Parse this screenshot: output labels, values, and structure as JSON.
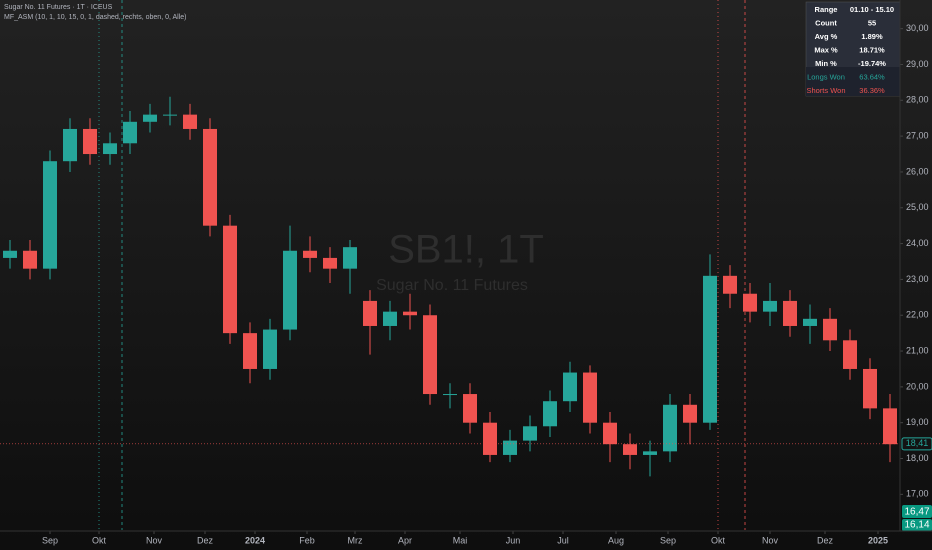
{
  "chart_data": {
    "type": "candlestick",
    "title": "Sugar No. 11 Futures · 1T · ICEUS",
    "indicator": "MF_ASM (10, 1, 10, 15, 0, 1, dashed, rechts, oben, 0, Alle)",
    "watermark": "SB1!, 1T",
    "watermark_subtitle": "Sugar No. 11 Futures",
    "up_color": "#26a69a",
    "down_color": "#ef5350",
    "x": [
      1,
      3,
      5,
      7,
      9,
      11,
      13,
      15,
      17,
      19,
      21,
      23,
      25,
      27,
      29,
      31,
      33,
      35,
      37,
      39,
      41,
      43,
      45,
      47,
      49,
      51,
      53,
      55,
      57,
      59,
      61,
      63,
      65,
      67,
      69,
      71,
      73,
      75,
      77,
      79,
      81,
      83,
      85,
      87,
      89
    ],
    "open": [
      23.6,
      23.8,
      23.3,
      26.3,
      27.2,
      26.5,
      26.8,
      27.4,
      27.6,
      27.6,
      27.2,
      24.5,
      21.5,
      20.5,
      21.6,
      23.8,
      23.6,
      23.3,
      22.4,
      21.7,
      22.1,
      22.0,
      19.8,
      19.8,
      19.0,
      18.1,
      18.5,
      18.9,
      19.6,
      20.4,
      19.0,
      18.4,
      18.1,
      18.2,
      19.5,
      19.0,
      23.1,
      22.6,
      22.1,
      22.4,
      21.7,
      21.9,
      21.3,
      20.5,
      19.4
    ],
    "high": [
      24.1,
      24.1,
      26.6,
      27.5,
      27.5,
      27.1,
      27.7,
      27.9,
      28.1,
      27.9,
      27.5,
      24.8,
      21.8,
      21.9,
      24.5,
      24.2,
      23.9,
      24.1,
      22.7,
      22.4,
      22.6,
      22.3,
      20.1,
      20.1,
      19.3,
      18.8,
      19.2,
      19.9,
      20.7,
      20.6,
      19.3,
      18.7,
      18.5,
      19.8,
      19.8,
      23.7,
      23.4,
      22.9,
      22.9,
      22.7,
      22.3,
      22.2,
      21.6,
      20.8,
      19.8
    ],
    "low": [
      23.3,
      23.0,
      23.0,
      26.0,
      26.2,
      26.2,
      26.5,
      27.1,
      27.3,
      26.9,
      24.2,
      21.2,
      20.1,
      20.2,
      21.3,
      23.2,
      22.9,
      22.6,
      20.9,
      21.3,
      21.6,
      19.5,
      19.4,
      18.7,
      17.9,
      17.9,
      18.2,
      18.6,
      19.3,
      18.7,
      17.9,
      17.7,
      17.5,
      17.9,
      18.4,
      18.8,
      22.2,
      21.8,
      21.7,
      21.4,
      21.2,
      21.0,
      20.2,
      19.1,
      17.9
    ],
    "close": [
      23.8,
      23.3,
      26.3,
      27.2,
      26.5,
      26.8,
      27.4,
      27.6,
      27.6,
      27.2,
      24.5,
      21.5,
      20.5,
      21.6,
      23.8,
      23.6,
      23.3,
      23.9,
      21.7,
      22.1,
      22.0,
      19.8,
      19.8,
      19.0,
      18.1,
      18.5,
      18.9,
      19.6,
      20.4,
      19.0,
      18.4,
      18.1,
      18.2,
      19.5,
      19.0,
      23.1,
      22.6,
      22.1,
      22.4,
      21.7,
      21.9,
      21.3,
      20.5,
      19.4,
      18.4
    ],
    "xlim": [
      0,
      90
    ],
    "xticks": [
      {
        "value": 5,
        "label": "Sep"
      },
      {
        "value": 9.9,
        "label": "Okt"
      },
      {
        "value": 15.4,
        "label": "Nov"
      },
      {
        "value": 20.5,
        "label": "Dez"
      },
      {
        "value": 25.5,
        "label": "2024"
      },
      {
        "value": 30.7,
        "label": "Feb"
      },
      {
        "value": 35.5,
        "label": "Mrz"
      },
      {
        "value": 40.5,
        "label": "Apr"
      },
      {
        "value": 46,
        "label": "Mai"
      },
      {
        "value": 51.3,
        "label": "Jun"
      },
      {
        "value": 56.3,
        "label": "Jul"
      },
      {
        "value": 61.6,
        "label": "Aug"
      },
      {
        "value": 66.8,
        "label": "Sep"
      },
      {
        "value": 71.8,
        "label": "Okt"
      },
      {
        "value": 77,
        "label": "Nov"
      },
      {
        "value": 82.5,
        "label": "Dez"
      },
      {
        "value": 87.8,
        "label": "2025"
      }
    ],
    "ylim": [
      16.2,
      30.8
    ],
    "yticks": [
      {
        "value": 17,
        "label": "17,00"
      },
      {
        "value": 18,
        "label": "18,00"
      },
      {
        "value": 19,
        "label": "19,00"
      },
      {
        "value": 20,
        "label": "20,00"
      },
      {
        "value": 21,
        "label": "21,00"
      },
      {
        "value": 22,
        "label": "22,00"
      },
      {
        "value": 23,
        "label": "23,00"
      },
      {
        "value": 24,
        "label": "24,00"
      },
      {
        "value": 25,
        "label": "25,00"
      },
      {
        "value": 26,
        "label": "26,00"
      },
      {
        "value": 27,
        "label": "27,00"
      },
      {
        "value": 28,
        "label": "28,00"
      },
      {
        "value": 29,
        "label": "29,00"
      },
      {
        "value": 30,
        "label": "30,00"
      }
    ],
    "last_price": {
      "value": 18.41,
      "label": "18,41"
    },
    "price_badges": [
      "16,47",
      "16,14"
    ],
    "stats_table": [
      [
        "Range",
        "01.10 - 15.10"
      ],
      [
        "Count",
        "55"
      ],
      [
        "Avg %",
        "1.89%"
      ],
      [
        "Max %",
        "18.71%"
      ],
      [
        "Min %",
        "-19.74%"
      ],
      [
        "Longs Won",
        "63.64%"
      ],
      [
        "Shorts Won",
        "36.36%"
      ]
    ]
  }
}
